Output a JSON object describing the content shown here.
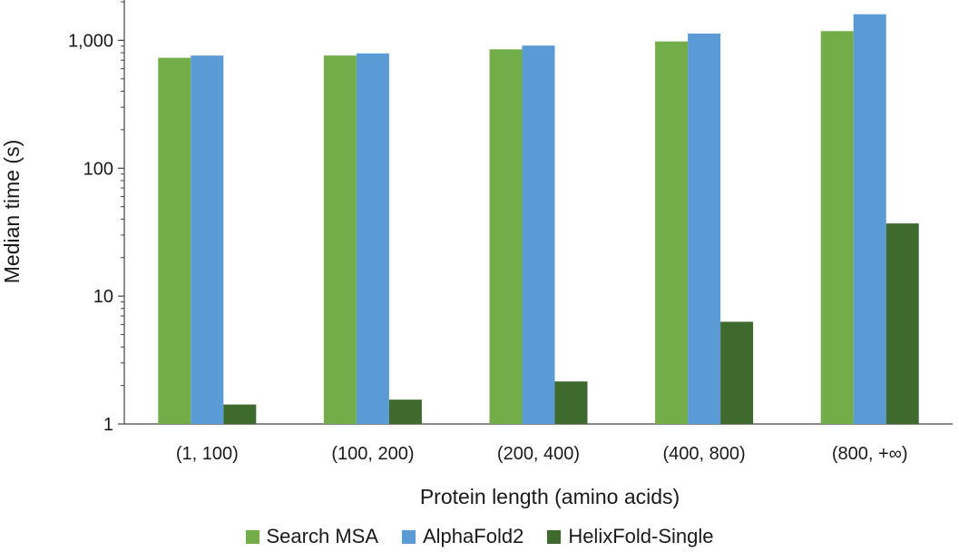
{
  "chart_data": {
    "type": "bar",
    "title": "",
    "xlabel": "Protein length (amino acids)",
    "ylabel": "Median time (s)",
    "yscale": "log",
    "ylim": [
      1,
      2000
    ],
    "yticks": [
      1,
      10,
      100,
      1000
    ],
    "ytick_labels": [
      "1",
      "10",
      "100",
      "1,000"
    ],
    "categories": [
      "(1, 100)",
      "(100, 200)",
      "(200, 400)",
      "(400, 800)",
      "(800, +∞)"
    ],
    "series": [
      {
        "name": "Search MSA",
        "color": "#72ad4a",
        "values": [
          730,
          760,
          850,
          980,
          1180
        ]
      },
      {
        "name": "AlphaFold2",
        "color": "#5b9bd5",
        "values": [
          760,
          790,
          910,
          1130,
          1600
        ]
      },
      {
        "name": "HelixFold-Single",
        "color": "#3e6b2d",
        "values": [
          1.42,
          1.55,
          2.15,
          6.3,
          37
        ]
      }
    ],
    "legend_position": "bottom-center",
    "grid": false
  }
}
